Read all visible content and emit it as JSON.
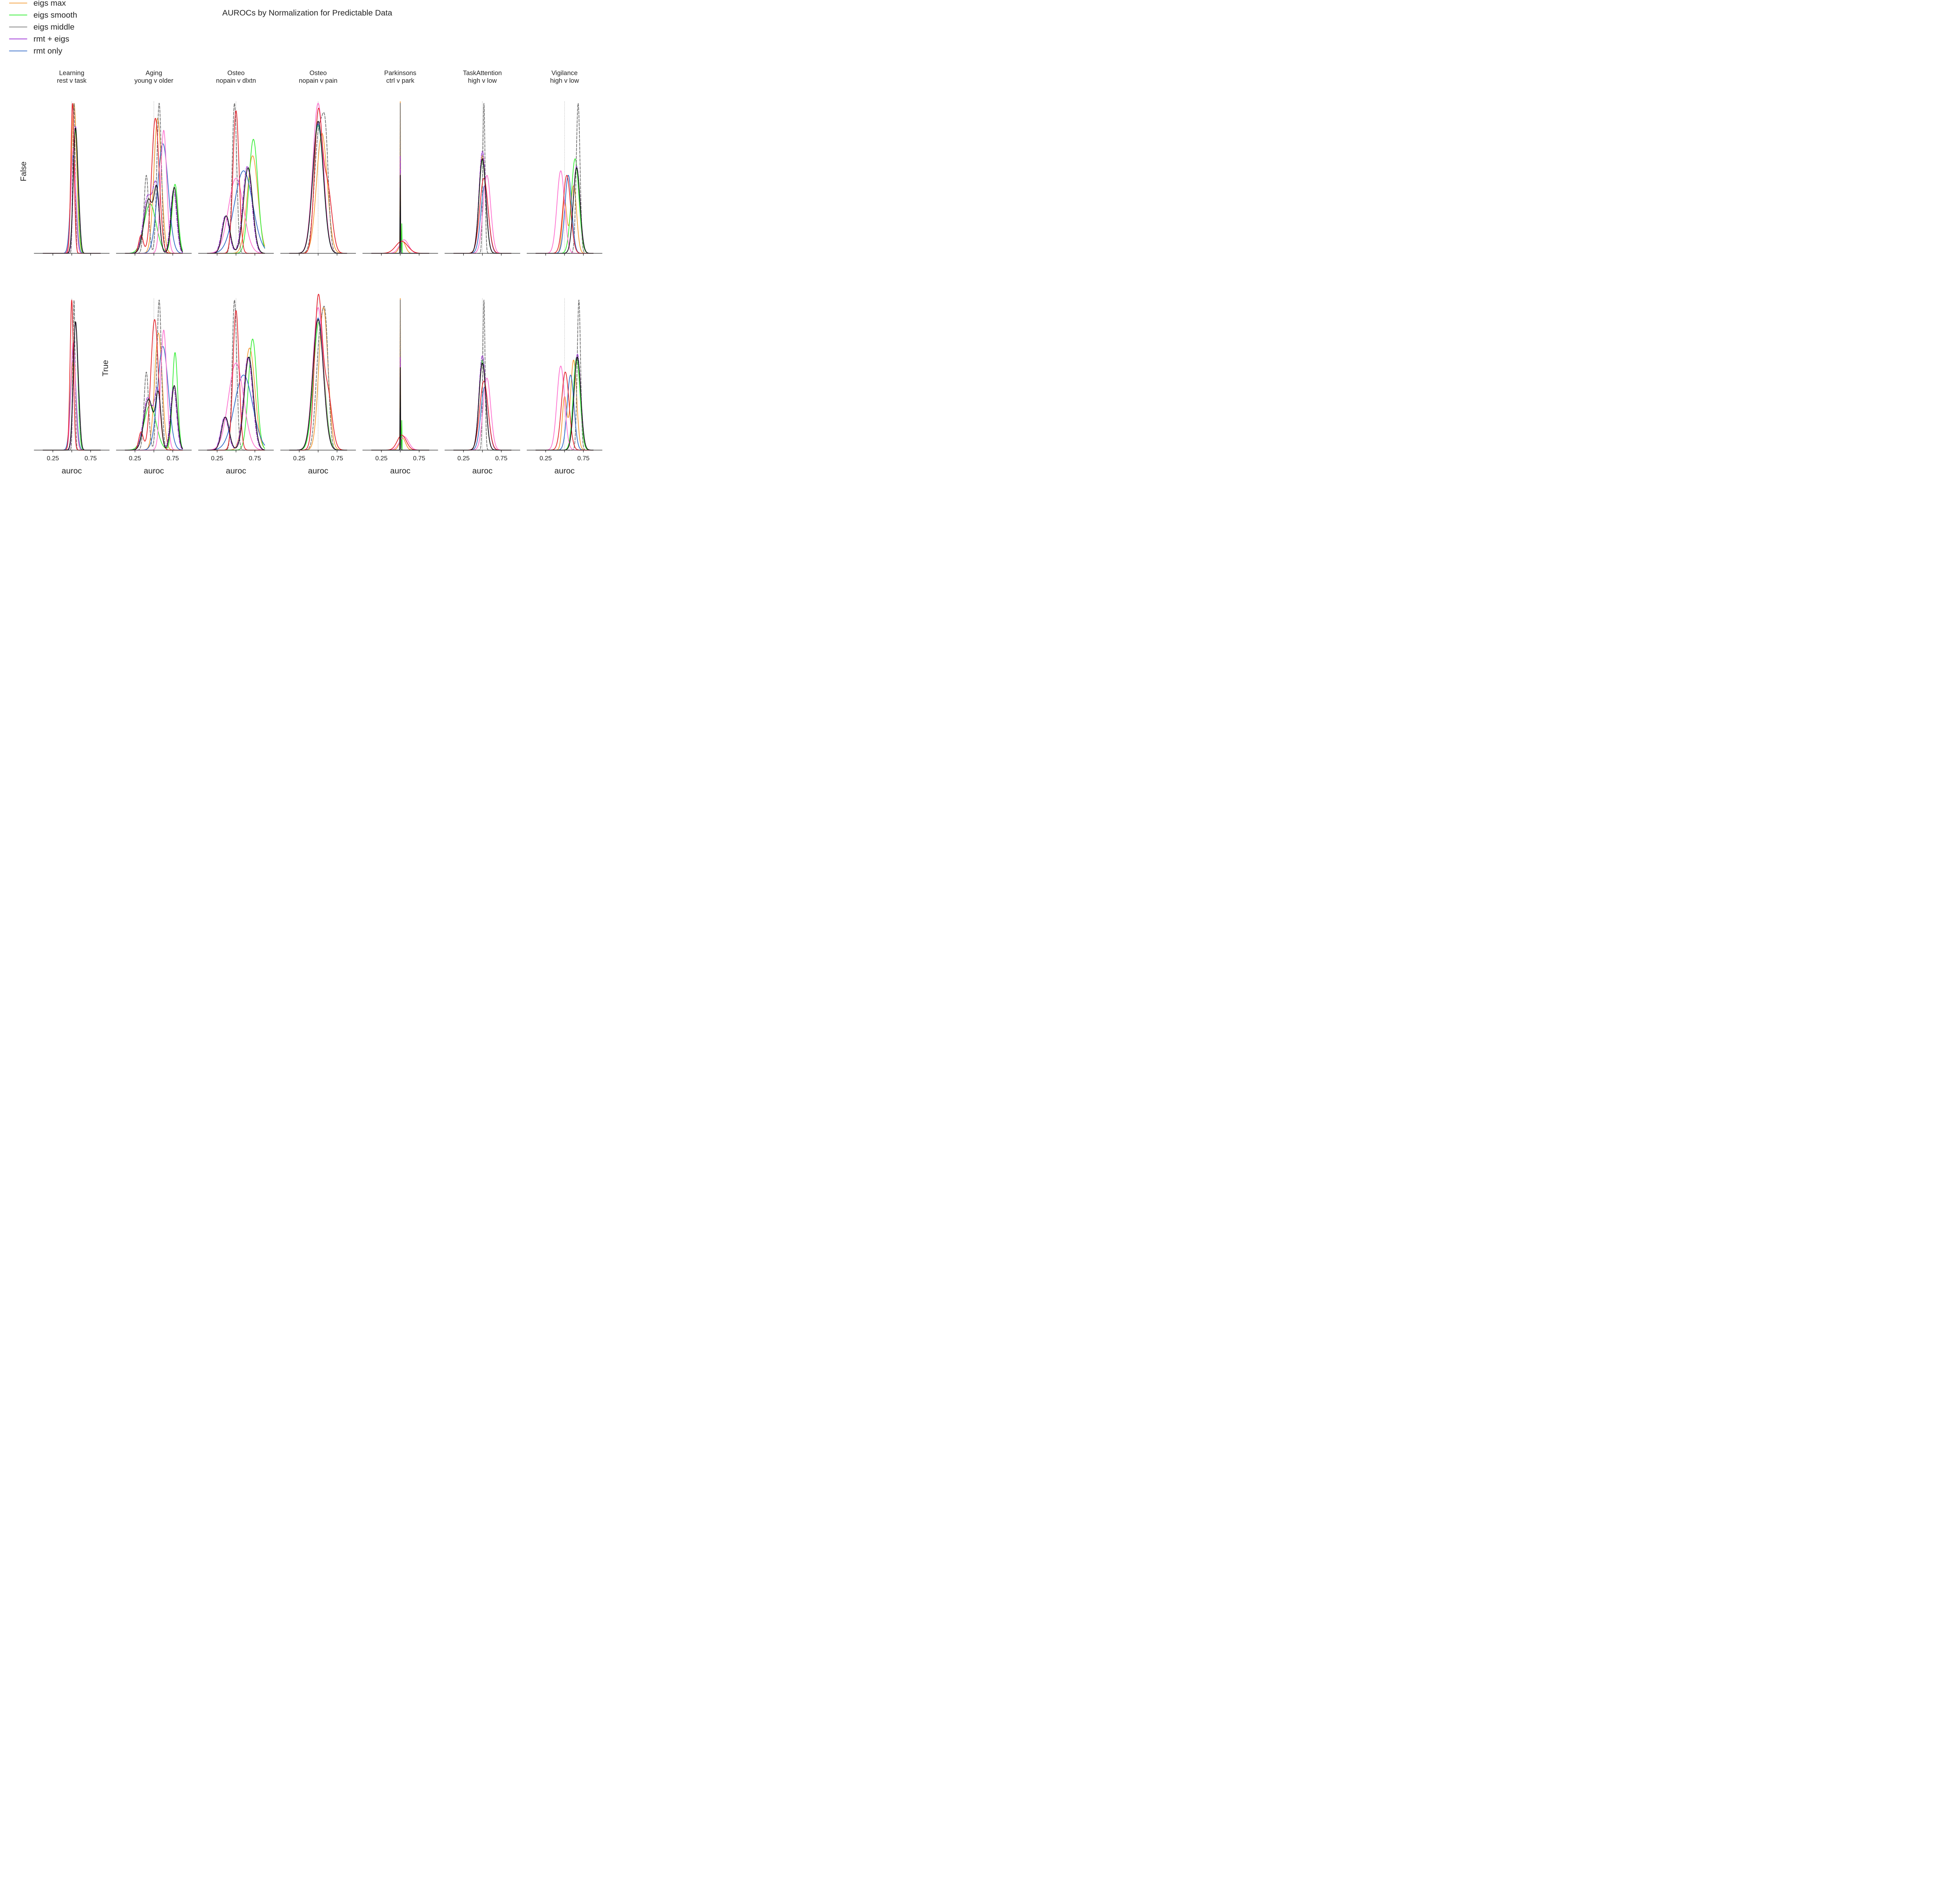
{
  "chart_data": {
    "type": "area",
    "title": "AUROCs by Normalization for Predictable Data",
    "xlabel": "auroc",
    "xticks": [
      0.25,
      0.5,
      0.75
    ],
    "xtick_labels": [
      "0.25",
      "0.75"
    ],
    "xlim": [
      0.0,
      1.0
    ],
    "reference_x": 0.5,
    "grid": false,
    "legend_position": "top-left",
    "legend": [
      {
        "name": "eigs max",
        "color": "#f39a33",
        "dash": "solid"
      },
      {
        "name": "eigs smooth",
        "color": "#33ee33",
        "dash": "solid"
      },
      {
        "name": "eigs middle",
        "color": "#808080",
        "dash": "solid"
      },
      {
        "name": "rmt + eigs",
        "color": "#9b30d6",
        "dash": "solid"
      },
      {
        "name": "rmt only",
        "color": "#2f68c6",
        "dash": "solid"
      }
    ],
    "rows": [
      "False",
      "True"
    ],
    "columns": [
      {
        "title": [
          "Learning",
          "rest v task"
        ]
      },
      {
        "title": [
          "Aging",
          "young v older"
        ]
      },
      {
        "title": [
          "Osteo",
          "nopain v dlxtn"
        ]
      },
      {
        "title": [
          "Osteo",
          "nopain v pain"
        ]
      },
      {
        "title": [
          "Parkinsons",
          "ctrl v park"
        ]
      },
      {
        "title": [
          "TaskAttention",
          "high v low"
        ]
      },
      {
        "title": [
          "Vigilance",
          "high v low"
        ]
      }
    ],
    "series_styles": [
      {
        "color": "#f39a33",
        "dash": "solid"
      },
      {
        "color": "#33ee33",
        "dash": "solid"
      },
      {
        "color": "#707070",
        "dash": "dashed"
      },
      {
        "color": "#9b30d6",
        "dash": "dashdot"
      },
      {
        "color": "#2f68c6",
        "dash": "solid"
      },
      {
        "color": "#ff6fcf",
        "dash": "solid"
      },
      {
        "color": "#e3202a",
        "dash": "solid"
      },
      {
        "color": "#111111",
        "dash": "solid"
      }
    ],
    "panels": [
      [
        [
          [
            [
              0.53,
              0.035,
              1
            ]
          ],
          [
            [
              0.55,
              0.03,
              0.82
            ]
          ],
          [
            [
              0.53,
              0.015,
              1
            ]
          ],
          [
            [
              0.55,
              0.028,
              0.84
            ],
            [
              0.6,
              0.02,
              0.12
            ]
          ],
          [
            [
              0.52,
              0.035,
              0.65
            ]
          ],
          [
            [
              0.52,
              0.03,
              0.7
            ]
          ],
          [
            [
              0.51,
              0.022,
              1
            ]
          ],
          [
            [
              0.55,
              0.03,
              0.83
            ],
            [
              0.6,
              0.02,
              0.12
            ]
          ]
        ],
        [
          [
            [
              0.52,
              0.035,
              0.6
            ]
          ],
          [
            [
              0.55,
              0.03,
              0.85
            ]
          ],
          [
            [
              0.53,
              0.014,
              1
            ]
          ],
          [
            [
              0.55,
              0.028,
              0.84
            ],
            [
              0.6,
              0.02,
              0.12
            ]
          ],
          [
            [
              0.52,
              0.035,
              0.67
            ]
          ],
          [
            [
              0.52,
              0.03,
              0.72
            ]
          ],
          [
            [
              0.5,
              0.022,
              1
            ]
          ],
          [
            [
              0.55,
              0.03,
              0.85
            ],
            [
              0.6,
              0.02,
              0.12
            ]
          ]
        ]
      ],
      [
        [
          [
            [
              0.55,
              0.05,
              0.9
            ]
          ],
          [
            [
              0.45,
              0.08,
              0.33
            ],
            [
              0.78,
              0.04,
              0.46
            ]
          ],
          [
            [
              0.4,
              0.03,
              0.52
            ],
            [
              0.57,
              0.03,
              1
            ]
          ],
          [
            [
              0.42,
              0.06,
              0.38
            ],
            [
              0.53,
              0.04,
              0.4
            ],
            [
              0.76,
              0.04,
              0.42
            ]
          ],
          [
            [
              0.62,
              0.07,
              0.73
            ]
          ],
          [
            [
              0.63,
              0.04,
              0.82
            ]
          ],
          [
            [
              0.52,
              0.05,
              0.9
            ],
            [
              0.33,
              0.03,
              0.12
            ]
          ],
          [
            [
              0.43,
              0.06,
              0.36
            ],
            [
              0.54,
              0.035,
              0.38
            ],
            [
              0.77,
              0.04,
              0.44
            ]
          ]
        ],
        [
          [
            [
              0.56,
              0.05,
              0.78
            ]
          ],
          [
            [
              0.45,
              0.08,
              0.3
            ],
            [
              0.78,
              0.035,
              0.65
            ]
          ],
          [
            [
              0.4,
              0.03,
              0.52
            ],
            [
              0.57,
              0.03,
              1
            ]
          ],
          [
            [
              0.42,
              0.06,
              0.35
            ],
            [
              0.55,
              0.04,
              0.38
            ],
            [
              0.76,
              0.04,
              0.42
            ]
          ],
          [
            [
              0.62,
              0.07,
              0.69
            ]
          ],
          [
            [
              0.63,
              0.04,
              0.8
            ]
          ],
          [
            [
              0.51,
              0.05,
              0.87
            ],
            [
              0.33,
              0.03,
              0.12
            ]
          ],
          [
            [
              0.43,
              0.06,
              0.34
            ],
            [
              0.56,
              0.035,
              0.36
            ],
            [
              0.77,
              0.04,
              0.43
            ]
          ]
        ]
      ],
      [
        [
          [
            [
              0.72,
              0.07,
              0.65
            ]
          ],
          [
            [
              0.73,
              0.06,
              0.76
            ]
          ],
          [
            [
              0.48,
              0.03,
              1
            ]
          ],
          [
            [
              0.36,
              0.05,
              0.25
            ],
            [
              0.65,
              0.06,
              0.58
            ]
          ],
          [
            [
              0.6,
              0.12,
              0.55
            ]
          ],
          [
            [
              0.5,
              0.1,
              0.5
            ]
          ],
          [
            [
              0.5,
              0.04,
              0.95
            ]
          ],
          [
            [
              0.37,
              0.05,
              0.25
            ],
            [
              0.66,
              0.06,
              0.57
            ]
          ]
        ],
        [
          [
            [
              0.68,
              0.07,
              0.68
            ]
          ],
          [
            [
              0.72,
              0.055,
              0.74
            ]
          ],
          [
            [
              0.48,
              0.03,
              1
            ]
          ],
          [
            [
              0.35,
              0.05,
              0.22
            ],
            [
              0.66,
              0.06,
              0.62
            ]
          ],
          [
            [
              0.6,
              0.12,
              0.5
            ]
          ],
          [
            [
              0.5,
              0.1,
              0.58
            ]
          ],
          [
            [
              0.5,
              0.04,
              0.93
            ]
          ],
          [
            [
              0.36,
              0.05,
              0.22
            ],
            [
              0.67,
              0.06,
              0.62
            ]
          ]
        ]
      ],
      [
        [
          [
            [
              0.55,
              0.07,
              0.8
            ]
          ],
          [
            [
              0.5,
              0.07,
              0.85
            ]
          ],
          [
            [
              0.51,
              0.06,
              0.8
            ],
            [
              0.6,
              0.04,
              0.6
            ]
          ],
          [
            [
              0.5,
              0.07,
              0.87
            ]
          ],
          [
            [
              0.5,
              0.07,
              0.86
            ]
          ],
          [
            [
              0.5,
              0.07,
              1
            ]
          ],
          [
            [
              0.5,
              0.05,
              0.9
            ],
            [
              0.62,
              0.06,
              0.45
            ]
          ],
          [
            [
              0.5,
              0.07,
              0.88
            ]
          ]
        ],
        [
          [
            [
              0.57,
              0.06,
              0.95
            ]
          ],
          [
            [
              0.51,
              0.07,
              0.85
            ]
          ],
          [
            [
              0.52,
              0.05,
              0.7
            ],
            [
              0.6,
              0.04,
              0.7
            ]
          ],
          [
            [
              0.5,
              0.07,
              0.87
            ]
          ],
          [
            [
              0.5,
              0.07,
              0.88
            ]
          ],
          [
            [
              0.5,
              0.07,
              0.95
            ]
          ],
          [
            [
              0.5,
              0.05,
              0.98
            ],
            [
              0.62,
              0.06,
              0.4
            ]
          ],
          [
            [
              0.5,
              0.07,
              0.87
            ]
          ]
        ]
      ],
      [
        [
          [
            [
              0.5,
              0.003,
              0.95
            ],
            [
              0.53,
              0.04,
              0.08
            ]
          ],
          [
            [
              0.5,
              0.003,
              0.55
            ],
            [
              0.52,
              0.003,
              0.2
            ]
          ],
          [
            [
              0.5,
              0.002,
              1
            ]
          ],
          [
            [
              0.5,
              0.003,
              0.65
            ]
          ],
          [
            [
              0.5,
              0.003,
              0.5
            ]
          ],
          [
            [
              0.55,
              0.06,
              0.09
            ]
          ],
          [
            [
              0.52,
              0.08,
              0.08
            ]
          ],
          [
            [
              0.5,
              0.003,
              0.52
            ]
          ]
        ],
        [
          [
            [
              0.5,
              0.003,
              0.95
            ],
            [
              0.53,
              0.04,
              0.08
            ]
          ],
          [
            [
              0.5,
              0.003,
              0.55
            ],
            [
              0.52,
              0.003,
              0.2
            ]
          ],
          [
            [
              0.5,
              0.002,
              1
            ]
          ],
          [
            [
              0.5,
              0.003,
              0.62
            ]
          ],
          [
            [
              0.5,
              0.003,
              0.5
            ]
          ],
          [
            [
              0.55,
              0.06,
              0.09
            ]
          ],
          [
            [
              0.52,
              0.06,
              0.1
            ]
          ],
          [
            [
              0.5,
              0.003,
              0.55
            ]
          ]
        ]
      ],
      [
        [
          [
            [
              0.5,
              0.045,
              0.65
            ]
          ],
          [
            [
              0.5,
              0.045,
              0.62
            ]
          ],
          [
            [
              0.52,
              0.015,
              1
            ]
          ],
          [
            [
              0.5,
              0.045,
              0.68
            ]
          ],
          [
            [
              0.53,
              0.05,
              0.45
            ]
          ],
          [
            [
              0.56,
              0.05,
              0.52
            ]
          ],
          [
            [
              0.52,
              0.055,
              0.5
            ]
          ],
          [
            [
              0.5,
              0.045,
              0.63
            ]
          ]
        ],
        [
          [
            [
              0.5,
              0.045,
              0.58
            ]
          ],
          [
            [
              0.5,
              0.045,
              0.6
            ]
          ],
          [
            [
              0.52,
              0.015,
              1
            ]
          ],
          [
            [
              0.5,
              0.045,
              0.63
            ]
          ],
          [
            [
              0.53,
              0.05,
              0.42
            ]
          ],
          [
            [
              0.56,
              0.05,
              0.48
            ]
          ],
          [
            [
              0.52,
              0.055,
              0.46
            ]
          ],
          [
            [
              0.5,
              0.045,
              0.58
            ]
          ]
        ]
      ],
      [
        [
          [
            [
              0.5,
              0.03,
              0.35
            ],
            [
              0.62,
              0.04,
              0.45
            ]
          ],
          [
            [
              0.64,
              0.05,
              0.63
            ]
          ],
          [
            [
              0.68,
              0.025,
              1
            ]
          ],
          [
            [
              0.66,
              0.045,
              0.58
            ]
          ],
          [
            [
              0.55,
              0.045,
              0.52
            ]
          ],
          [
            [
              0.45,
              0.05,
              0.55
            ]
          ],
          [
            [
              0.53,
              0.05,
              0.52
            ]
          ],
          [
            [
              0.66,
              0.045,
              0.57
            ]
          ]
        ],
        [
          [
            [
              0.5,
              0.03,
              0.35
            ],
            [
              0.62,
              0.04,
              0.6
            ]
          ],
          [
            [
              0.66,
              0.045,
              0.62
            ]
          ],
          [
            [
              0.69,
              0.022,
              1
            ]
          ],
          [
            [
              0.67,
              0.045,
              0.64
            ]
          ],
          [
            [
              0.58,
              0.045,
              0.5
            ]
          ],
          [
            [
              0.45,
              0.05,
              0.56
            ]
          ],
          [
            [
              0.51,
              0.05,
              0.52
            ]
          ],
          [
            [
              0.67,
              0.045,
              0.62
            ]
          ]
        ]
      ]
    ]
  }
}
